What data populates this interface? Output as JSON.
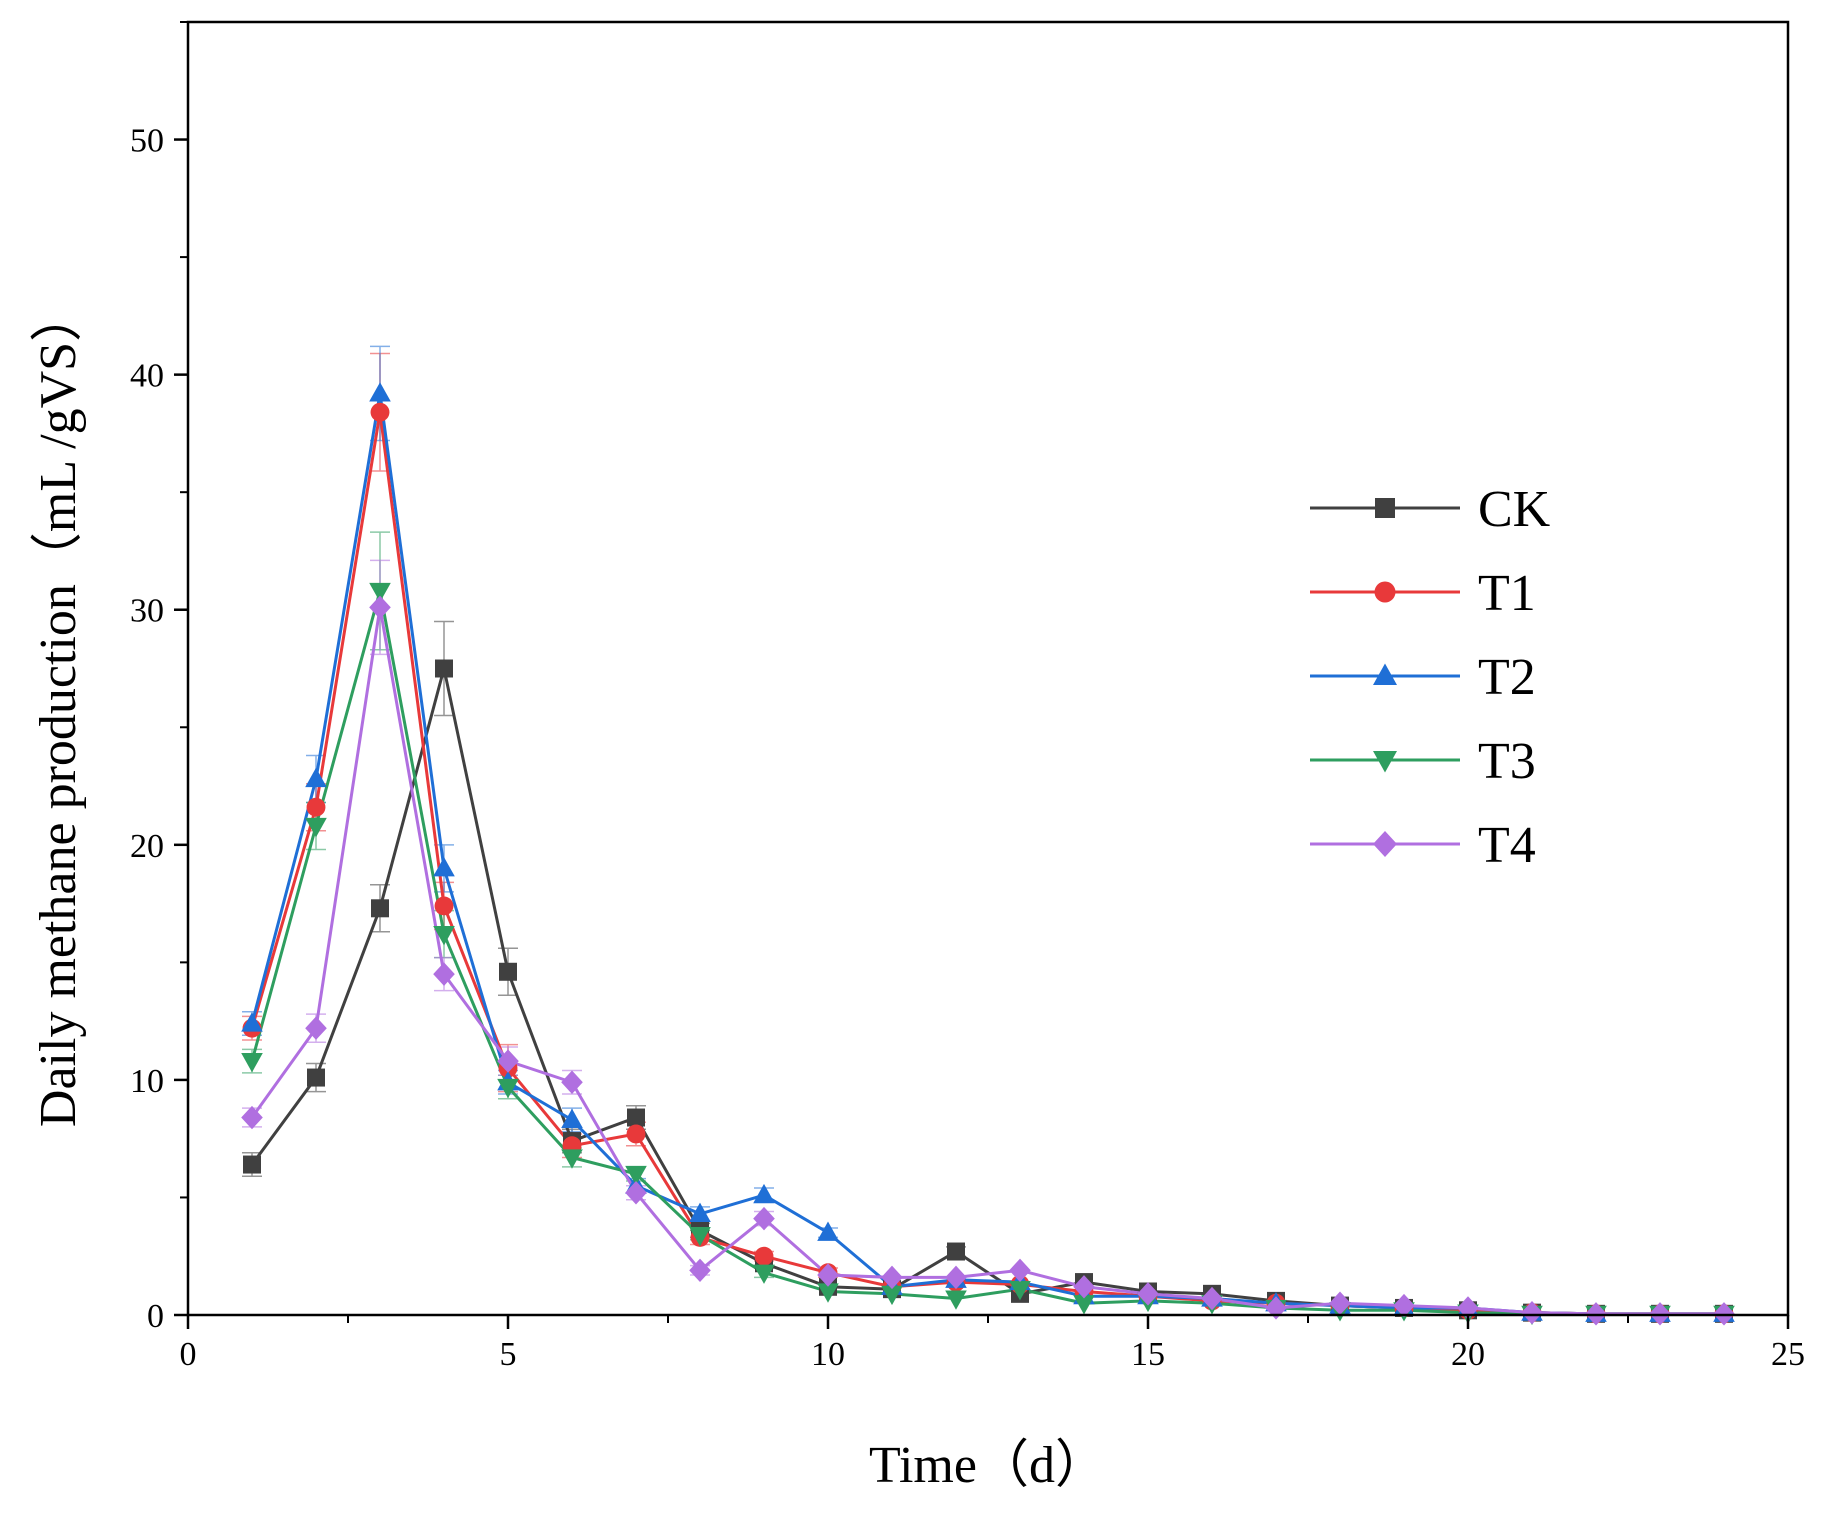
{
  "chart_data": {
    "type": "line",
    "title": "",
    "xlabel": "Time（d）",
    "ylabel": "Daily methane production（mL /gVS）",
    "xlim": [
      0,
      25
    ],
    "ylim": [
      0,
      55
    ],
    "xticks": [
      0,
      5,
      10,
      15,
      20,
      25
    ],
    "yticks": [
      0,
      10,
      20,
      30,
      40,
      50
    ],
    "grid": false,
    "legend_position": "right-center",
    "x": [
      1,
      2,
      3,
      4,
      5,
      6,
      7,
      8,
      9,
      10,
      11,
      12,
      13,
      14,
      15,
      16,
      17,
      18,
      19,
      20,
      21,
      22,
      23,
      24
    ],
    "series": [
      {
        "name": "CK",
        "color": "#404040",
        "marker": "square",
        "values": [
          6.4,
          10.1,
          17.3,
          27.5,
          14.6,
          7.4,
          8.4,
          3.6,
          2.2,
          1.2,
          1.1,
          2.7,
          0.9,
          1.4,
          1.0,
          0.9,
          0.6,
          0.4,
          0.3,
          0.2,
          0.1,
          0.05,
          0.05,
          0.05
        ],
        "errors": [
          0.5,
          0.6,
          1.0,
          2.0,
          1.0,
          0.5,
          0.5,
          0.3,
          0.2,
          0.1,
          0.1,
          0.2,
          0.1,
          0.1,
          0.1,
          0.1,
          0.1,
          0.1,
          0.05,
          0.05,
          0.05,
          0.05,
          0.05,
          0.05
        ]
      },
      {
        "name": "T1",
        "color": "#e8393a",
        "marker": "circle",
        "values": [
          12.2,
          21.6,
          38.4,
          17.4,
          10.5,
          7.2,
          7.7,
          3.3,
          2.5,
          1.8,
          1.2,
          1.4,
          1.3,
          1.0,
          0.8,
          0.6,
          0.5,
          0.4,
          0.3,
          0.2,
          0.1,
          0.05,
          0.05,
          0.05
        ],
        "errors": [
          0.5,
          1.0,
          2.5,
          1.0,
          1.0,
          0.5,
          0.5,
          0.3,
          0.2,
          0.2,
          0.1,
          0.1,
          0.1,
          0.1,
          0.1,
          0.1,
          0.1,
          0.05,
          0.05,
          0.05,
          0.05,
          0.05,
          0.05,
          0.05
        ]
      },
      {
        "name": "T2",
        "color": "#1f6fd6",
        "marker": "triangle-up",
        "values": [
          12.4,
          22.8,
          39.2,
          19.0,
          9.9,
          8.3,
          5.5,
          4.3,
          5.1,
          3.5,
          1.2,
          1.5,
          1.4,
          0.8,
          0.8,
          0.7,
          0.5,
          0.4,
          0.3,
          0.3,
          0.1,
          0.05,
          0.05,
          0.05
        ],
        "errors": [
          0.5,
          1.0,
          2.0,
          1.0,
          0.5,
          0.5,
          0.3,
          0.3,
          0.3,
          0.2,
          0.1,
          0.1,
          0.1,
          0.1,
          0.1,
          0.1,
          0.05,
          0.05,
          0.05,
          0.05,
          0.05,
          0.05,
          0.05,
          0.05
        ]
      },
      {
        "name": "T3",
        "color": "#2e9e5f",
        "marker": "triangle-down",
        "values": [
          10.8,
          20.8,
          30.8,
          16.2,
          9.7,
          6.7,
          6.0,
          3.4,
          1.8,
          1.0,
          0.9,
          0.7,
          1.1,
          0.5,
          0.6,
          0.5,
          0.3,
          0.2,
          0.2,
          0.1,
          0.05,
          0.05,
          0.05,
          0.05
        ],
        "errors": [
          0.5,
          1.0,
          2.5,
          1.0,
          0.5,
          0.4,
          0.3,
          0.2,
          0.2,
          0.1,
          0.1,
          0.1,
          0.1,
          0.1,
          0.1,
          0.05,
          0.05,
          0.05,
          0.05,
          0.05,
          0.05,
          0.05,
          0.05,
          0.05
        ]
      },
      {
        "name": "T4",
        "color": "#b06fe0",
        "marker": "diamond",
        "values": [
          8.4,
          12.2,
          30.1,
          14.5,
          10.8,
          9.9,
          5.2,
          1.9,
          4.1,
          1.7,
          1.6,
          1.6,
          1.9,
          1.2,
          0.9,
          0.7,
          0.3,
          0.5,
          0.4,
          0.3,
          0.1,
          0.05,
          0.05,
          0.05
        ],
        "errors": [
          0.4,
          0.6,
          2.0,
          0.7,
          0.6,
          0.5,
          0.3,
          0.2,
          0.3,
          0.1,
          0.1,
          0.1,
          0.1,
          0.1,
          0.1,
          0.05,
          0.05,
          0.05,
          0.05,
          0.05,
          0.05,
          0.05,
          0.05,
          0.05
        ]
      }
    ]
  }
}
